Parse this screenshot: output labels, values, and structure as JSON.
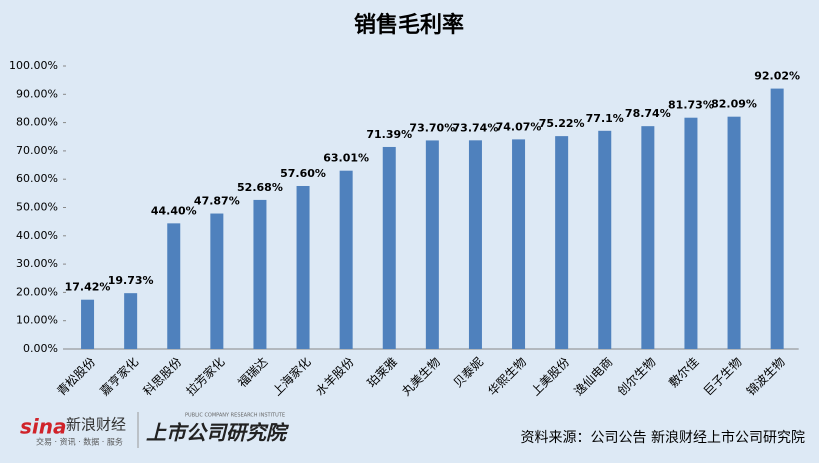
{
  "chart_data": {
    "type": "bar",
    "title": "销售毛利率",
    "categories": [
      "青松股份",
      "嘉亨家化",
      "科思股份",
      "拉芳家化",
      "福瑞达",
      "上海家化",
      "水羊股份",
      "珀莱雅",
      "丸美生物",
      "贝泰妮",
      "华熙生物",
      "上美股份",
      "逸仙电商",
      "创尔生物",
      "敷尔佳",
      "巨子生物",
      "锦波生物"
    ],
    "values": [
      17.42,
      19.73,
      44.4,
      47.87,
      52.68,
      57.6,
      63.01,
      71.39,
      73.7,
      73.74,
      74.07,
      75.22,
      77.1,
      78.74,
      81.73,
      82.09,
      92.02
    ],
    "value_labels": [
      "17.42%",
      "19.73%",
      "44.40%",
      "47.87%",
      "52.68%",
      "57.60%",
      "63.01%",
      "71.39%",
      "73.70%",
      "73.74%",
      "74.07%",
      "75.22%",
      "77.1%",
      "78.74%",
      "81.73%",
      "82.09%",
      "92.02%"
    ],
    "color": "#4f81bd",
    "ylim": [
      0,
      100
    ],
    "yticks": [
      {
        "value": 0,
        "label": "0.00%"
      },
      {
        "value": 10,
        "label": "10.00%"
      },
      {
        "value": 20,
        "label": "20.00%"
      },
      {
        "value": 30,
        "label": "30.00%"
      },
      {
        "value": 40,
        "label": "40.00%"
      },
      {
        "value": 50,
        "label": "50.00%"
      },
      {
        "value": 60,
        "label": "60.00%"
      },
      {
        "value": 70,
        "label": "70.00%"
      },
      {
        "value": 80,
        "label": "80.00%"
      },
      {
        "value": 90,
        "label": "90.00%"
      },
      {
        "value": 100,
        "label": "100.00%"
      }
    ],
    "grid": false
  },
  "footer": {
    "logo_sina": "sina",
    "logo_name": "新浪财经",
    "logo_slogan": "交易 · 资讯 · 数据 · 服务",
    "institute": "上市公司研究院",
    "institute_en": "PUBLIC COMPANY RESEARCH INSTITUTE",
    "source": "资料来源：公司公告 新浪财经上市公司研究院"
  }
}
